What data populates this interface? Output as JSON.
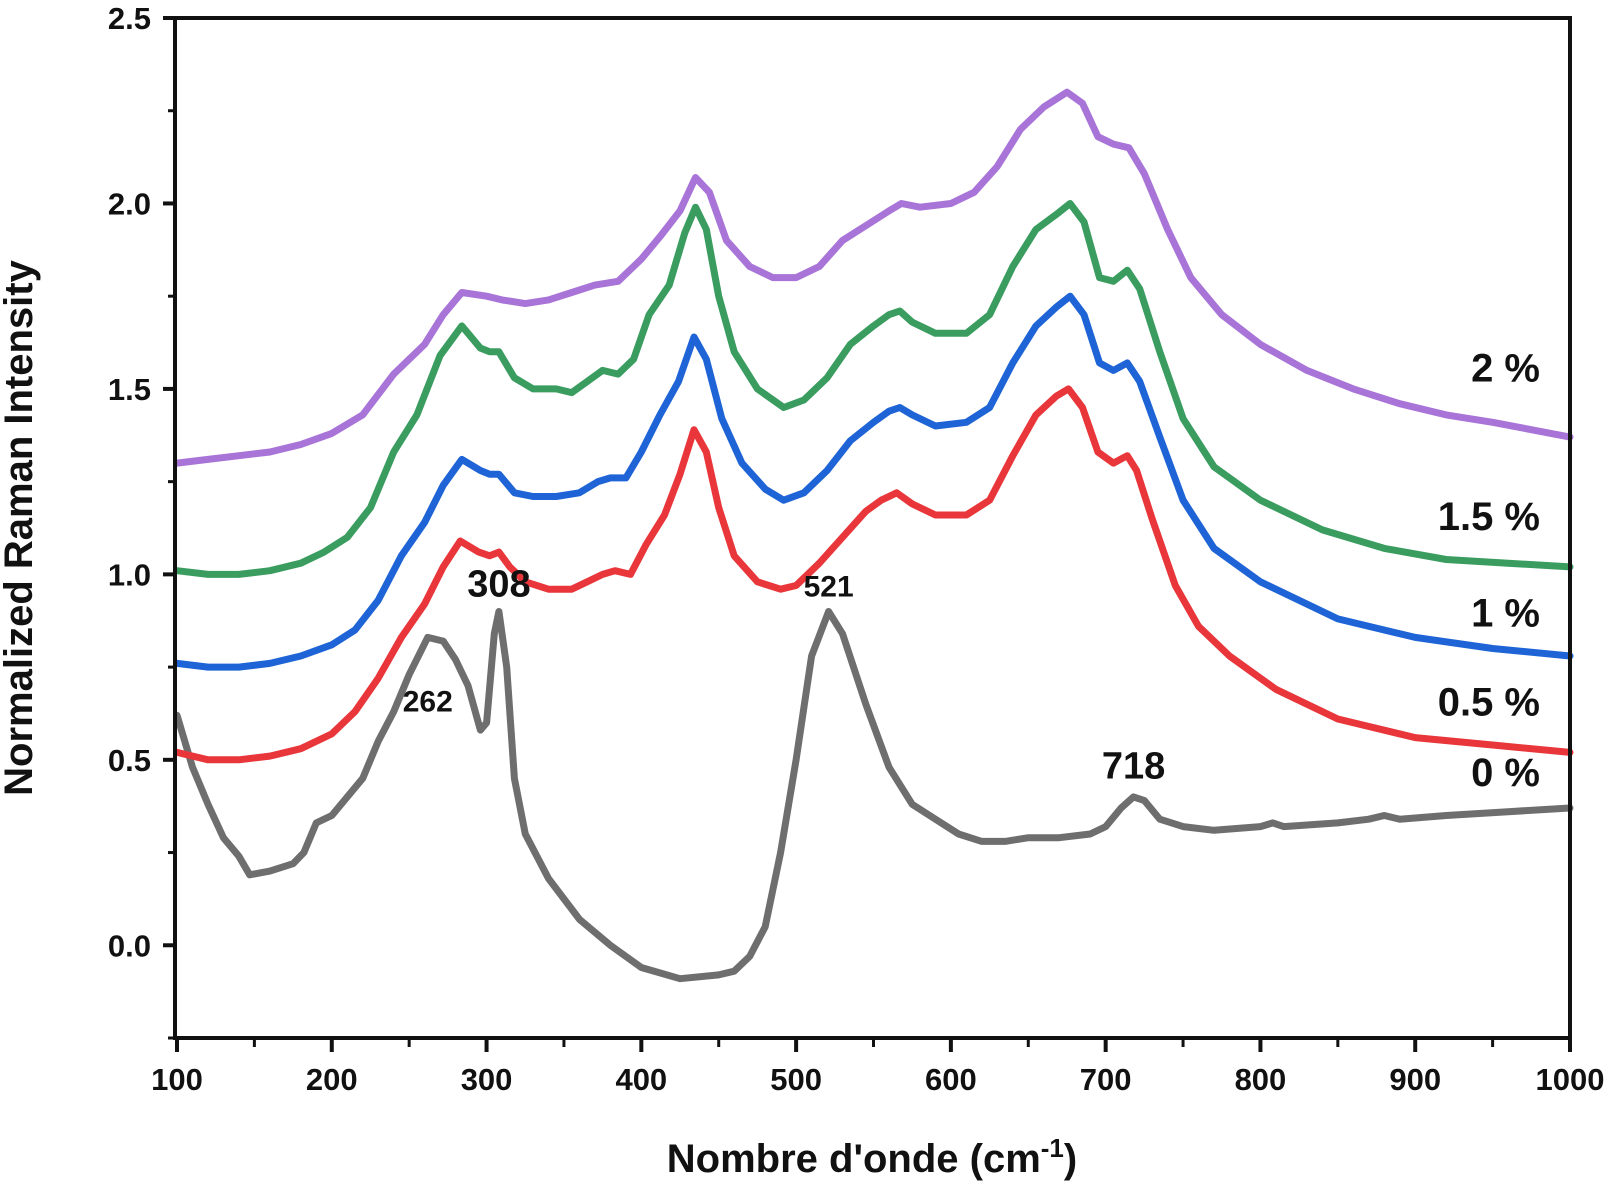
{
  "chart_data": {
    "type": "line",
    "title": "",
    "xlabel": "Nombre d'onde (cm",
    "xlabel_sup": "-1",
    "xlabel_end": ")",
    "ylabel": "Normalized Raman Intensity",
    "xlim": [
      100,
      1000
    ],
    "ylim": [
      -0.25,
      2.5
    ],
    "x_ticks": [
      100,
      200,
      300,
      400,
      500,
      600,
      700,
      800,
      900,
      1000
    ],
    "x_tick_labels": [
      "100",
      "200",
      "300",
      "400",
      "500",
      "600",
      "700",
      "800",
      "900",
      "1000"
    ],
    "y_ticks": [
      0.0,
      0.5,
      1.0,
      1.5,
      2.0,
      2.5
    ],
    "y_tick_labels": [
      "0.0",
      "0.5",
      "1.0",
      "1.5",
      "2.0",
      "2.5"
    ],
    "grid": false,
    "legend": "labels at right end of each curve",
    "series": [
      {
        "name": "0 %",
        "color": "#6e6e6e",
        "points": [
          [
            100,
            0.62
          ],
          [
            110,
            0.48
          ],
          [
            120,
            0.38
          ],
          [
            130,
            0.29
          ],
          [
            140,
            0.24
          ],
          [
            147,
            0.19
          ],
          [
            160,
            0.2
          ],
          [
            175,
            0.22
          ],
          [
            182,
            0.25
          ],
          [
            190,
            0.33
          ],
          [
            200,
            0.35
          ],
          [
            210,
            0.4
          ],
          [
            220,
            0.45
          ],
          [
            230,
            0.55
          ],
          [
            240,
            0.63
          ],
          [
            250,
            0.73
          ],
          [
            262,
            0.83
          ],
          [
            272,
            0.82
          ],
          [
            280,
            0.77
          ],
          [
            288,
            0.7
          ],
          [
            296,
            0.58
          ],
          [
            300,
            0.6
          ],
          [
            305,
            0.84
          ],
          [
            308,
            0.9
          ],
          [
            313,
            0.75
          ],
          [
            318,
            0.45
          ],
          [
            325,
            0.3
          ],
          [
            340,
            0.18
          ],
          [
            360,
            0.07
          ],
          [
            380,
            0.0
          ],
          [
            400,
            -0.06
          ],
          [
            425,
            -0.09
          ],
          [
            450,
            -0.08
          ],
          [
            460,
            -0.07
          ],
          [
            470,
            -0.03
          ],
          [
            480,
            0.05
          ],
          [
            490,
            0.25
          ],
          [
            500,
            0.5
          ],
          [
            510,
            0.78
          ],
          [
            521,
            0.9
          ],
          [
            530,
            0.84
          ],
          [
            545,
            0.65
          ],
          [
            560,
            0.48
          ],
          [
            575,
            0.38
          ],
          [
            590,
            0.34
          ],
          [
            605,
            0.3
          ],
          [
            620,
            0.28
          ],
          [
            635,
            0.28
          ],
          [
            650,
            0.29
          ],
          [
            670,
            0.29
          ],
          [
            690,
            0.3
          ],
          [
            700,
            0.32
          ],
          [
            710,
            0.37
          ],
          [
            718,
            0.4
          ],
          [
            725,
            0.39
          ],
          [
            735,
            0.34
          ],
          [
            750,
            0.32
          ],
          [
            770,
            0.31
          ],
          [
            800,
            0.32
          ],
          [
            808,
            0.33
          ],
          [
            815,
            0.32
          ],
          [
            850,
            0.33
          ],
          [
            870,
            0.34
          ],
          [
            880,
            0.35
          ],
          [
            890,
            0.34
          ],
          [
            920,
            0.35
          ],
          [
            960,
            0.36
          ],
          [
            1000,
            0.37
          ]
        ]
      },
      {
        "name": "0.5 %",
        "color": "#e8363a",
        "points": [
          [
            100,
            0.52
          ],
          [
            120,
            0.5
          ],
          [
            140,
            0.5
          ],
          [
            160,
            0.51
          ],
          [
            180,
            0.53
          ],
          [
            200,
            0.57
          ],
          [
            215,
            0.63
          ],
          [
            230,
            0.72
          ],
          [
            245,
            0.83
          ],
          [
            260,
            0.92
          ],
          [
            272,
            1.02
          ],
          [
            283,
            1.09
          ],
          [
            295,
            1.06
          ],
          [
            302,
            1.05
          ],
          [
            308,
            1.06
          ],
          [
            315,
            1.02
          ],
          [
            325,
            0.98
          ],
          [
            340,
            0.96
          ],
          [
            355,
            0.96
          ],
          [
            365,
            0.98
          ],
          [
            375,
            1.0
          ],
          [
            383,
            1.01
          ],
          [
            393,
            1.0
          ],
          [
            403,
            1.08
          ],
          [
            415,
            1.16
          ],
          [
            425,
            1.27
          ],
          [
            434,
            1.39
          ],
          [
            442,
            1.33
          ],
          [
            450,
            1.18
          ],
          [
            460,
            1.05
          ],
          [
            475,
            0.98
          ],
          [
            490,
            0.96
          ],
          [
            500,
            0.97
          ],
          [
            515,
            1.03
          ],
          [
            530,
            1.1
          ],
          [
            545,
            1.17
          ],
          [
            555,
            1.2
          ],
          [
            565,
            1.22
          ],
          [
            575,
            1.19
          ],
          [
            590,
            1.16
          ],
          [
            610,
            1.16
          ],
          [
            625,
            1.2
          ],
          [
            640,
            1.32
          ],
          [
            655,
            1.43
          ],
          [
            668,
            1.48
          ],
          [
            676,
            1.5
          ],
          [
            685,
            1.45
          ],
          [
            695,
            1.33
          ],
          [
            705,
            1.3
          ],
          [
            714,
            1.32
          ],
          [
            720,
            1.28
          ],
          [
            730,
            1.15
          ],
          [
            745,
            0.97
          ],
          [
            760,
            0.86
          ],
          [
            780,
            0.78
          ],
          [
            810,
            0.69
          ],
          [
            850,
            0.61
          ],
          [
            900,
            0.56
          ],
          [
            950,
            0.54
          ],
          [
            1000,
            0.52
          ]
        ]
      },
      {
        "name": "1 %",
        "color": "#1e64d6",
        "points": [
          [
            100,
            0.76
          ],
          [
            120,
            0.75
          ],
          [
            140,
            0.75
          ],
          [
            160,
            0.76
          ],
          [
            180,
            0.78
          ],
          [
            200,
            0.81
          ],
          [
            215,
            0.85
          ],
          [
            230,
            0.93
          ],
          [
            245,
            1.05
          ],
          [
            260,
            1.14
          ],
          [
            272,
            1.24
          ],
          [
            284,
            1.31
          ],
          [
            296,
            1.28
          ],
          [
            302,
            1.27
          ],
          [
            308,
            1.27
          ],
          [
            318,
            1.22
          ],
          [
            330,
            1.21
          ],
          [
            345,
            1.21
          ],
          [
            360,
            1.22
          ],
          [
            372,
            1.25
          ],
          [
            380,
            1.26
          ],
          [
            390,
            1.26
          ],
          [
            400,
            1.33
          ],
          [
            412,
            1.43
          ],
          [
            424,
            1.52
          ],
          [
            434,
            1.64
          ],
          [
            442,
            1.58
          ],
          [
            452,
            1.42
          ],
          [
            465,
            1.3
          ],
          [
            480,
            1.23
          ],
          [
            492,
            1.2
          ],
          [
            505,
            1.22
          ],
          [
            520,
            1.28
          ],
          [
            535,
            1.36
          ],
          [
            550,
            1.41
          ],
          [
            560,
            1.44
          ],
          [
            567,
            1.45
          ],
          [
            575,
            1.43
          ],
          [
            590,
            1.4
          ],
          [
            610,
            1.41
          ],
          [
            625,
            1.45
          ],
          [
            640,
            1.57
          ],
          [
            655,
            1.67
          ],
          [
            668,
            1.72
          ],
          [
            677,
            1.75
          ],
          [
            686,
            1.7
          ],
          [
            696,
            1.57
          ],
          [
            705,
            1.55
          ],
          [
            714,
            1.57
          ],
          [
            722,
            1.52
          ],
          [
            735,
            1.37
          ],
          [
            750,
            1.2
          ],
          [
            770,
            1.07
          ],
          [
            800,
            0.98
          ],
          [
            850,
            0.88
          ],
          [
            900,
            0.83
          ],
          [
            950,
            0.8
          ],
          [
            1000,
            0.78
          ]
        ]
      },
      {
        "name": "1.5 %",
        "color": "#3a9d5f",
        "points": [
          [
            100,
            1.01
          ],
          [
            120,
            1.0
          ],
          [
            140,
            1.0
          ],
          [
            160,
            1.01
          ],
          [
            180,
            1.03
          ],
          [
            195,
            1.06
          ],
          [
            210,
            1.1
          ],
          [
            225,
            1.18
          ],
          [
            240,
            1.33
          ],
          [
            255,
            1.43
          ],
          [
            270,
            1.59
          ],
          [
            284,
            1.67
          ],
          [
            296,
            1.61
          ],
          [
            302,
            1.6
          ],
          [
            308,
            1.6
          ],
          [
            318,
            1.53
          ],
          [
            330,
            1.5
          ],
          [
            345,
            1.5
          ],
          [
            355,
            1.49
          ],
          [
            365,
            1.52
          ],
          [
            375,
            1.55
          ],
          [
            385,
            1.54
          ],
          [
            395,
            1.58
          ],
          [
            405,
            1.7
          ],
          [
            418,
            1.78
          ],
          [
            428,
            1.92
          ],
          [
            435,
            1.99
          ],
          [
            442,
            1.93
          ],
          [
            450,
            1.75
          ],
          [
            460,
            1.6
          ],
          [
            475,
            1.5
          ],
          [
            492,
            1.45
          ],
          [
            505,
            1.47
          ],
          [
            520,
            1.53
          ],
          [
            535,
            1.62
          ],
          [
            550,
            1.67
          ],
          [
            560,
            1.7
          ],
          [
            567,
            1.71
          ],
          [
            575,
            1.68
          ],
          [
            590,
            1.65
          ],
          [
            610,
            1.65
          ],
          [
            625,
            1.7
          ],
          [
            640,
            1.83
          ],
          [
            655,
            1.93
          ],
          [
            668,
            1.97
          ],
          [
            677,
            2.0
          ],
          [
            686,
            1.95
          ],
          [
            696,
            1.8
          ],
          [
            705,
            1.79
          ],
          [
            714,
            1.82
          ],
          [
            722,
            1.77
          ],
          [
            735,
            1.6
          ],
          [
            750,
            1.42
          ],
          [
            770,
            1.29
          ],
          [
            800,
            1.2
          ],
          [
            840,
            1.12
          ],
          [
            880,
            1.07
          ],
          [
            920,
            1.04
          ],
          [
            960,
            1.03
          ],
          [
            1000,
            1.02
          ]
        ]
      },
      {
        "name": "2 %",
        "color": "#a874d8",
        "points": [
          [
            100,
            1.3
          ],
          [
            120,
            1.31
          ],
          [
            140,
            1.32
          ],
          [
            160,
            1.33
          ],
          [
            180,
            1.35
          ],
          [
            200,
            1.38
          ],
          [
            220,
            1.43
          ],
          [
            240,
            1.54
          ],
          [
            260,
            1.62
          ],
          [
            272,
            1.7
          ],
          [
            284,
            1.76
          ],
          [
            300,
            1.75
          ],
          [
            310,
            1.74
          ],
          [
            325,
            1.73
          ],
          [
            340,
            1.74
          ],
          [
            355,
            1.76
          ],
          [
            370,
            1.78
          ],
          [
            385,
            1.79
          ],
          [
            400,
            1.85
          ],
          [
            412,
            1.91
          ],
          [
            425,
            1.98
          ],
          [
            435,
            2.07
          ],
          [
            444,
            2.03
          ],
          [
            455,
            1.9
          ],
          [
            470,
            1.83
          ],
          [
            485,
            1.8
          ],
          [
            500,
            1.8
          ],
          [
            515,
            1.83
          ],
          [
            530,
            1.9
          ],
          [
            545,
            1.94
          ],
          [
            560,
            1.98
          ],
          [
            568,
            2.0
          ],
          [
            580,
            1.99
          ],
          [
            600,
            2.0
          ],
          [
            615,
            2.03
          ],
          [
            630,
            2.1
          ],
          [
            645,
            2.2
          ],
          [
            660,
            2.26
          ],
          [
            675,
            2.3
          ],
          [
            685,
            2.27
          ],
          [
            695,
            2.18
          ],
          [
            705,
            2.16
          ],
          [
            715,
            2.15
          ],
          [
            725,
            2.08
          ],
          [
            740,
            1.93
          ],
          [
            755,
            1.8
          ],
          [
            775,
            1.7
          ],
          [
            800,
            1.62
          ],
          [
            830,
            1.55
          ],
          [
            860,
            1.5
          ],
          [
            890,
            1.46
          ],
          [
            920,
            1.43
          ],
          [
            950,
            1.41
          ],
          [
            1000,
            1.37
          ]
        ]
      }
    ],
    "series_labels": [
      {
        "text": "2 %",
        "y": 1.52
      },
      {
        "text": "1.5 %",
        "y": 1.12
      },
      {
        "text": "1 %",
        "y": 0.86
      },
      {
        "text": "0.5 %",
        "y": 0.62
      },
      {
        "text": "0 %",
        "y": 0.43
      }
    ],
    "annotations": [
      {
        "text": "308",
        "x": 308,
        "y": 0.94,
        "size": "big"
      },
      {
        "text": "262",
        "x": 262,
        "y": 0.63,
        "size": "small"
      },
      {
        "text": "521",
        "x": 521,
        "y": 0.94,
        "size": "small"
      },
      {
        "text": "718",
        "x": 718,
        "y": 0.45,
        "size": "big"
      }
    ]
  }
}
